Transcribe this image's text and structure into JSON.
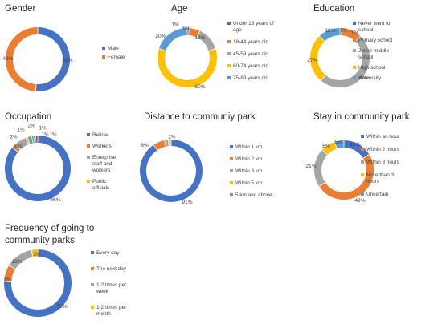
{
  "colors": {
    "blue": "#4472C4",
    "orange": "#ED7D31",
    "gray": "#A5A5A5",
    "gold": "#FFC000",
    "lightblue": "#5B9BD5"
  },
  "chart_data": [
    {
      "type": "pie",
      "variant": "donut",
      "title": [
        "Gender"
      ],
      "legend": "right",
      "series": [
        {
          "name": "Male",
          "value": 51,
          "label": "51%",
          "color": "#4472C4"
        },
        {
          "name": "Female",
          "value": 49,
          "label": "49%",
          "color": "#ED7D31"
        }
      ]
    },
    {
      "type": "pie",
      "variant": "donut",
      "title": [
        "Age"
      ],
      "legend": "right",
      "series": [
        {
          "name": "Under 18 years of age",
          "value": 1,
          "label": "1%",
          "color": "#4472C4"
        },
        {
          "name": "18-44 years old",
          "value": 6,
          "label": "6%",
          "color": "#ED7D31"
        },
        {
          "name": "45-59 years old",
          "value": 13,
          "label": "13%",
          "color": "#A5A5A5"
        },
        {
          "name": "60-74 years old",
          "value": 60,
          "label": "60%",
          "color": "#FFC000"
        },
        {
          "name": "75-89 years old",
          "value": 20,
          "label": "20%",
          "color": "#5B9BD5"
        }
      ]
    },
    {
      "type": "pie",
      "variant": "donut",
      "title": [
        "Education"
      ],
      "legend": "right",
      "series": [
        {
          "name": "Never went to school.",
          "value": 1,
          "label": "1%",
          "color": "#4472C4"
        },
        {
          "name": "Primary school",
          "value": 11,
          "label": "11%",
          "color": "#ED7D31"
        },
        {
          "name": "Junior middle school",
          "value": 49,
          "label": "49%",
          "color": "#A5A5A5"
        },
        {
          "name": "High school",
          "value": 27,
          "label": "27%",
          "color": "#FFC000"
        },
        {
          "name": "University",
          "value": 12,
          "label": "12%",
          "color": "#5B9BD5"
        }
      ]
    },
    {
      "type": "pie",
      "variant": "donut",
      "title": [
        "Occupation"
      ],
      "legend": "right",
      "series": [
        {
          "name": "Retiree",
          "value": 86,
          "label": "86%",
          "color": "#4472C4"
        },
        {
          "name": "Workers",
          "value": 2,
          "label": "2%",
          "color": "#ED7D31"
        },
        {
          "name": "Enterprise staff and workers",
          "value": 6,
          "label": "6%",
          "color": "#A5A5A5"
        },
        {
          "name": "Public officials",
          "value": 1,
          "label": "1%",
          "color": "#FFC000"
        },
        {
          "name": "",
          "value": 2,
          "label": "2%",
          "color": "#5B9BD5"
        },
        {
          "name": "",
          "value": 1,
          "label": "1%",
          "color": "#70AD47"
        },
        {
          "name": "",
          "value": 1,
          "label": "1%",
          "color": "#264478"
        },
        {
          "name": "",
          "value": 1,
          "label": "1%",
          "color": "#9E480E"
        }
      ]
    },
    {
      "type": "pie",
      "variant": "donut",
      "title": [
        "Distance to communiy park"
      ],
      "legend": "right",
      "series": [
        {
          "name": "Within 1 km",
          "value": 91,
          "label": "91%",
          "color": "#4472C4"
        },
        {
          "name": "Within 2 km",
          "value": 6,
          "label": "6%",
          "color": "#ED7D31"
        },
        {
          "name": "Within 3 km",
          "value": 2,
          "label": "2%",
          "color": "#A5A5A5"
        },
        {
          "name": "Within 5 km",
          "value": 1,
          "label": "",
          "color": "#FFC000"
        },
        {
          "name": "5 km and above",
          "value": 0.5,
          "label": "",
          "color": "#5B9BD5"
        }
      ]
    },
    {
      "type": "pie",
      "variant": "donut",
      "title": [
        "Stay in community park"
      ],
      "legend": "right",
      "series": [
        {
          "name": "Within an hour",
          "value": 16,
          "label": "16%",
          "color": "#4472C4"
        },
        {
          "name": "Within 2 hours",
          "value": 49,
          "label": "49%",
          "color": "#ED7D31"
        },
        {
          "name": "Within 3 hours",
          "value": 21,
          "label": "21%",
          "color": "#A5A5A5"
        },
        {
          "name": "More than 3 hours",
          "value": 8,
          "label": "8%",
          "color": "#FFC000"
        },
        {
          "name": "Uncertain",
          "value": 5,
          "label": "5%",
          "color": "#5B9BD5"
        }
      ]
    },
    {
      "type": "pie",
      "variant": "donut",
      "title": [
        "Frequency of going to",
        "community parks"
      ],
      "legend": "right",
      "series": [
        {
          "name": "Every day",
          "value": 75,
          "label": "75%",
          "color": "#4472C4"
        },
        {
          "name": "The next day",
          "value": 8,
          "label": "8%",
          "color": "#ED7D31"
        },
        {
          "name": "1-2 times per week",
          "value": 13,
          "label": "13%",
          "color": "#A5A5A5"
        },
        {
          "name": "1-2 times per month",
          "value": 3,
          "label": "3%",
          "color": "#FFC000"
        }
      ]
    }
  ]
}
